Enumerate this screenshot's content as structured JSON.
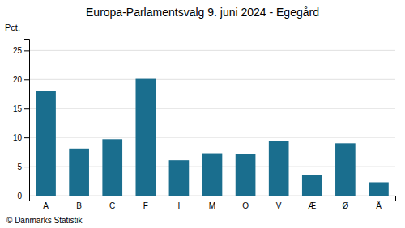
{
  "chart_data": {
    "type": "bar",
    "title": "Europa-Parlamentsvalg 9. juni 2024 - Egegård",
    "categories": [
      "A",
      "B",
      "C",
      "F",
      "I",
      "M",
      "O",
      "V",
      "Æ",
      "Ø",
      "Å"
    ],
    "values": [
      18.0,
      8.1,
      9.7,
      20.1,
      6.1,
      7.3,
      7.1,
      9.4,
      3.5,
      9.0,
      2.3
    ],
    "color": "#1a6e8e",
    "ylabel": "Pct.",
    "ylim": [
      0,
      27
    ],
    "yticks": [
      0,
      5,
      10,
      15,
      20,
      25
    ],
    "grid": true,
    "annotations": [
      "© Danmarks Statistik"
    ]
  }
}
